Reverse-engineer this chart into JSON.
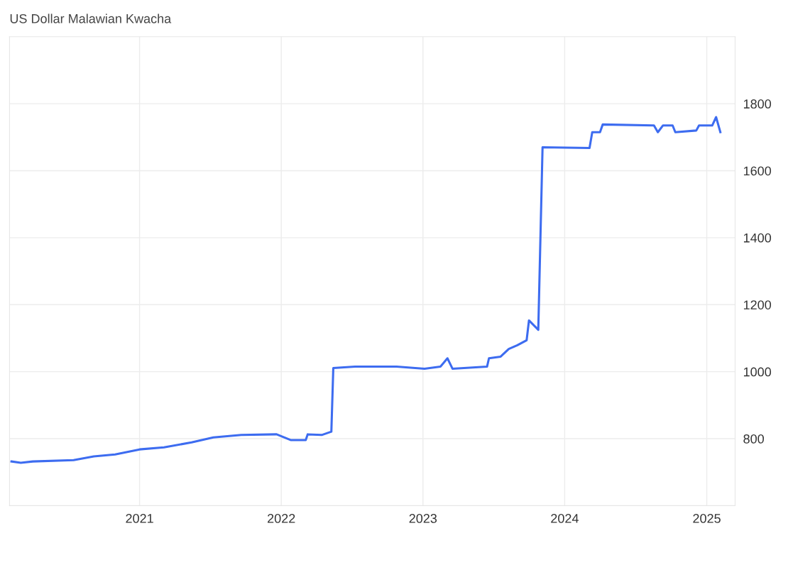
{
  "chart_data": {
    "type": "line",
    "title": "US Dollar Malawian Kwacha",
    "x": [
      "2020-02-06",
      "2020-03-01",
      "2020-04-01",
      "2020-07-15",
      "2020-09-05",
      "2020-10-30",
      "2021-01-01",
      "2021-03-05",
      "2021-05-15",
      "2021-07-10",
      "2021-09-20",
      "2021-12-20",
      "2022-01-25",
      "2022-03-05",
      "2022-03-10",
      "2022-04-15",
      "2022-05-10",
      "2022-05-15",
      "2022-07-10",
      "2022-10-25",
      "2023-01-05",
      "2023-02-15",
      "2023-03-05",
      "2023-03-18",
      "2023-06-15",
      "2023-06-20",
      "2023-07-20",
      "2023-08-10",
      "2023-09-01",
      "2023-09-25",
      "2023-10-01",
      "2023-10-25",
      "2023-11-05",
      "2024-03-05",
      "2024-03-12",
      "2024-04-01",
      "2024-04-08",
      "2024-08-18",
      "2024-08-28",
      "2024-09-10",
      "2024-10-05",
      "2024-10-12",
      "2024-12-05",
      "2024-12-12",
      "2025-01-15",
      "2025-01-25",
      "2025-02-05"
    ],
    "series": [
      {
        "color": "#3d6cf0",
        "values": [
          732,
          728,
          732,
          736,
          747,
          753,
          768,
          774,
          789,
          804,
          811,
          813,
          796,
          796,
          813,
          811,
          821,
          1011,
          1015,
          1015,
          1009,
          1015,
          1040,
          1009,
          1015,
          1040,
          1045,
          1068,
          1079,
          1094,
          1153,
          1125,
          1670,
          1668,
          1715,
          1715,
          1738,
          1735,
          1715,
          1735,
          1735,
          1715,
          1720,
          1735,
          1735,
          1760,
          1715
        ]
      }
    ],
    "xlim": [
      "2020-02-01",
      "2025-03-15"
    ],
    "xticks": [
      {
        "value": "2021-01-01",
        "label": "2021"
      },
      {
        "value": "2022-01-01",
        "label": "2022"
      },
      {
        "value": "2023-01-01",
        "label": "2023"
      },
      {
        "value": "2024-01-01",
        "label": "2024"
      },
      {
        "value": "2025-01-01",
        "label": "2025"
      }
    ],
    "ylim": [
      600,
      2000
    ],
    "yticks": [
      800,
      1000,
      1200,
      1400,
      1600,
      1800
    ],
    "grid": true,
    "marker": "none",
    "line_style": "solid"
  }
}
